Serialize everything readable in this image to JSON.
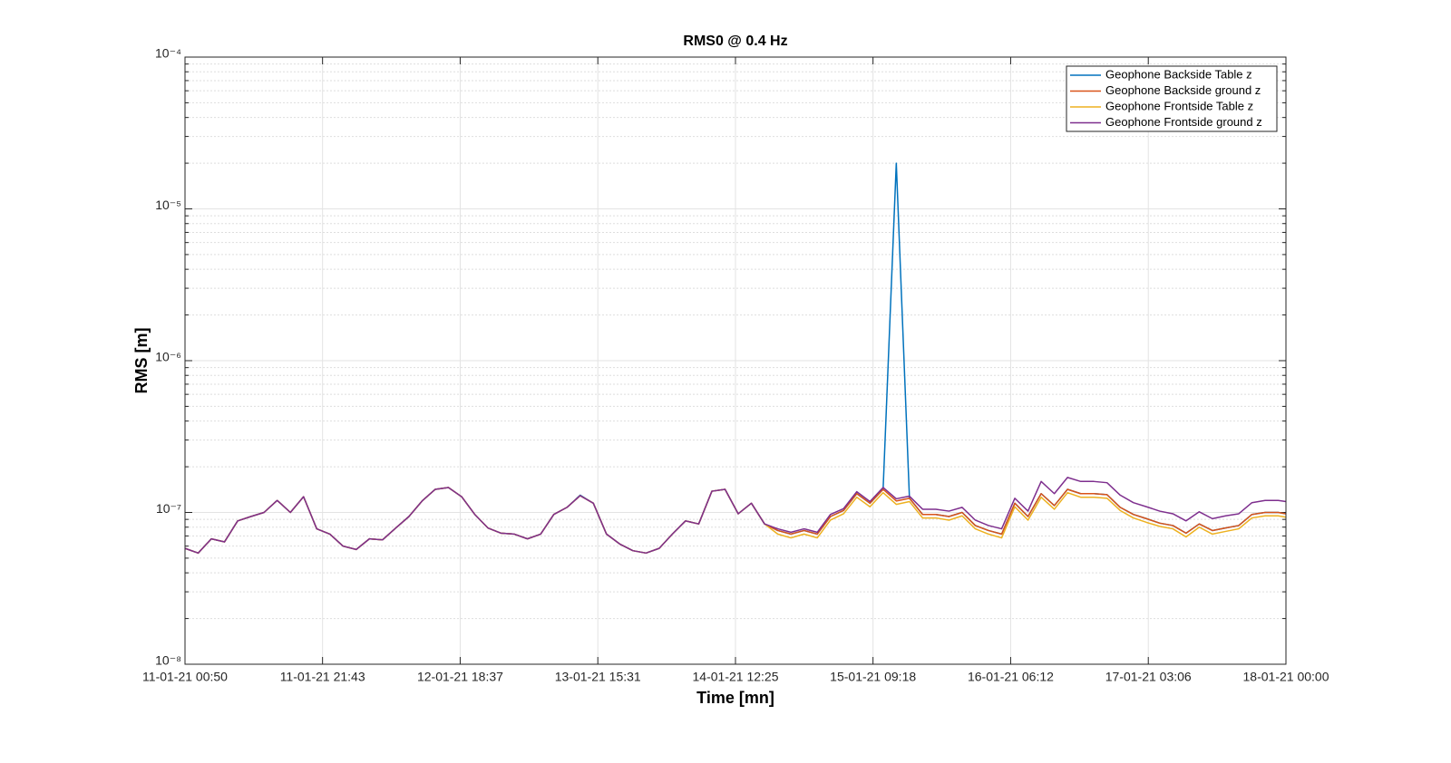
{
  "chart_data": {
    "type": "line",
    "title": "RMS0 @ 0.4 Hz",
    "x_label": "Time [mn]",
    "y_label": "RMS [m]",
    "x": [
      "11-01-21 00:50",
      "11-01-21 02:50",
      "11-01-21 04:50",
      "11-01-21 06:50",
      "11-01-21 08:50",
      "11-01-21 10:50",
      "11-01-21 12:50",
      "11-01-21 14:50",
      "11-01-21 16:50",
      "11-01-21 18:50",
      "11-01-21 20:50",
      "11-01-21 22:50",
      "12-01-21 00:50",
      "12-01-21 02:50",
      "12-01-21 04:50",
      "12-01-21 06:50",
      "12-01-21 08:50",
      "12-01-21 10:50",
      "12-01-21 12:50",
      "12-01-21 14:50",
      "12-01-21 16:50",
      "12-01-21 18:50",
      "12-01-21 20:50",
      "12-01-21 22:50",
      "13-01-21 00:50",
      "13-01-21 02:50",
      "13-01-21 04:50",
      "13-01-21 06:50",
      "13-01-21 08:50",
      "13-01-21 10:50",
      "13-01-21 12:50",
      "13-01-21 14:50",
      "13-01-21 16:50",
      "13-01-21 18:50",
      "13-01-21 20:50",
      "13-01-21 22:50",
      "14-01-21 00:50",
      "14-01-21 02:50",
      "14-01-21 04:50",
      "14-01-21 06:50",
      "14-01-21 08:50",
      "14-01-21 10:50",
      "14-01-21 12:50",
      "14-01-21 14:50",
      "14-01-21 16:50",
      "14-01-21 18:50",
      "14-01-21 20:50",
      "14-01-21 22:50",
      "15-01-21 00:50",
      "15-01-21 02:50",
      "15-01-21 04:50",
      "15-01-21 06:50",
      "15-01-21 08:50",
      "15-01-21 10:50",
      "15-01-21 12:50",
      "15-01-21 14:50",
      "15-01-21 16:50",
      "15-01-21 18:50",
      "15-01-21 20:50",
      "15-01-21 22:50",
      "16-01-21 00:50",
      "16-01-21 02:50",
      "16-01-21 04:50",
      "16-01-21 06:50",
      "16-01-21 08:50",
      "16-01-21 10:50",
      "16-01-21 12:50",
      "16-01-21 14:50",
      "16-01-21 16:50",
      "16-01-21 18:50",
      "16-01-21 20:50",
      "16-01-21 22:50",
      "17-01-21 00:50",
      "17-01-21 02:50",
      "17-01-21 04:50",
      "17-01-21 06:50",
      "17-01-21 08:50",
      "17-01-21 10:50",
      "17-01-21 12:50",
      "17-01-21 14:50",
      "17-01-21 16:50",
      "17-01-21 18:50",
      "17-01-21 20:50",
      "17-01-21 22:50",
      "18-01-21 00:00"
    ],
    "series": [
      {
        "name": "Geophone Backside Table z",
        "color": "#0072BD",
        "values": [
          5.8e-08,
          5.4e-08,
          6.7e-08,
          6.4e-08,
          8.8e-08,
          9.4e-08,
          1e-07,
          1.2e-07,
          1e-07,
          1.27e-07,
          7.8e-08,
          7.2e-08,
          6e-08,
          5.7e-08,
          6.7e-08,
          6.6e-08,
          7.9e-08,
          9.4e-08,
          1.19e-07,
          1.42e-07,
          1.46e-07,
          1.27e-07,
          9.7e-08,
          7.9e-08,
          7.3e-08,
          7.2e-08,
          6.7e-08,
          7.2e-08,
          9.7e-08,
          1.08e-07,
          1.3e-07,
          1.15e-07,
          7.2e-08,
          6.2e-08,
          5.6e-08,
          5.4e-08,
          5.8e-08,
          7.2e-08,
          8.8e-08,
          8.4e-08,
          1.38e-07,
          1.42e-07,
          9.8e-08,
          1.15e-07,
          8.4e-08,
          7.6e-08,
          7.2e-08,
          7.6e-08,
          7.2e-08,
          9.4e-08,
          1.03e-07,
          1.33e-07,
          1.15e-07,
          1.42e-07,
          2e-05,
          1.24e-07,
          9.7e-08,
          9.7e-08,
          9.4e-08,
          1e-07,
          8.2e-08,
          7.6e-08,
          7.2e-08,
          1.15e-07,
          9.4e-08,
          1.33e-07,
          1.11e-07,
          1.42e-07,
          1.33e-07,
          1.33e-07,
          1.31e-07,
          1.08e-07,
          9.7e-08,
          9.1e-08,
          8.5e-08,
          8.2e-08,
          7.3e-08,
          8.4e-08,
          7.6e-08,
          7.9e-08,
          8.2e-08,
          9.7e-08,
          1e-07,
          1e-07,
          9.8e-08
        ]
      },
      {
        "name": "Geophone Backside ground z",
        "color": "#D95319",
        "values": [
          5.8e-08,
          5.4e-08,
          6.7e-08,
          6.4e-08,
          8.8e-08,
          9.4e-08,
          1e-07,
          1.2e-07,
          1e-07,
          1.27e-07,
          7.8e-08,
          7.2e-08,
          6e-08,
          5.7e-08,
          6.7e-08,
          6.6e-08,
          7.9e-08,
          9.4e-08,
          1.19e-07,
          1.42e-07,
          1.46e-07,
          1.27e-07,
          9.7e-08,
          7.9e-08,
          7.3e-08,
          7.2e-08,
          6.7e-08,
          7.2e-08,
          9.7e-08,
          1.08e-07,
          1.29e-07,
          1.15e-07,
          7.2e-08,
          6.2e-08,
          5.6e-08,
          5.4e-08,
          5.8e-08,
          7.2e-08,
          8.8e-08,
          8.4e-08,
          1.38e-07,
          1.42e-07,
          9.8e-08,
          1.15e-07,
          8.4e-08,
          7.6e-08,
          7.2e-08,
          7.6e-08,
          7.2e-08,
          9.4e-08,
          1.03e-07,
          1.33e-07,
          1.15e-07,
          1.42e-07,
          1.19e-07,
          1.24e-07,
          9.7e-08,
          9.7e-08,
          9.4e-08,
          1e-07,
          8.2e-08,
          7.6e-08,
          7.2e-08,
          1.15e-07,
          9.4e-08,
          1.33e-07,
          1.11e-07,
          1.42e-07,
          1.33e-07,
          1.33e-07,
          1.31e-07,
          1.08e-07,
          9.7e-08,
          9.1e-08,
          8.5e-08,
          8.2e-08,
          7.3e-08,
          8.4e-08,
          7.6e-08,
          7.9e-08,
          8.2e-08,
          9.7e-08,
          1e-07,
          1e-07,
          9.8e-08
        ]
      },
      {
        "name": "Geophone Frontside Table z",
        "color": "#EDB120",
        "values": [
          5.8e-08,
          5.4e-08,
          6.7e-08,
          6.4e-08,
          8.8e-08,
          9.4e-08,
          1e-07,
          1.2e-07,
          1e-07,
          1.27e-07,
          7.8e-08,
          7.2e-08,
          6e-08,
          5.7e-08,
          6.7e-08,
          6.6e-08,
          7.9e-08,
          9.4e-08,
          1.19e-07,
          1.42e-07,
          1.46e-07,
          1.27e-07,
          9.7e-08,
          7.9e-08,
          7.3e-08,
          7.2e-08,
          6.7e-08,
          7.2e-08,
          9.7e-08,
          1.08e-07,
          1.29e-07,
          1.15e-07,
          7.2e-08,
          6.2e-08,
          5.6e-08,
          5.4e-08,
          5.8e-08,
          7.2e-08,
          8.8e-08,
          8.4e-08,
          1.38e-07,
          1.42e-07,
          9.8e-08,
          1.15e-07,
          8.4e-08,
          7.2e-08,
          6.8e-08,
          7.2e-08,
          6.8e-08,
          8.9e-08,
          9.8e-08,
          1.26e-07,
          1.09e-07,
          1.35e-07,
          1.13e-07,
          1.18e-07,
          9.2e-08,
          9.2e-08,
          8.9e-08,
          9.5e-08,
          7.8e-08,
          7.2e-08,
          6.8e-08,
          1.09e-07,
          8.9e-08,
          1.26e-07,
          1.05e-07,
          1.35e-07,
          1.26e-07,
          1.26e-07,
          1.24e-07,
          1.03e-07,
          9.2e-08,
          8.6e-08,
          8.1e-08,
          7.8e-08,
          6.9e-08,
          8e-08,
          7.2e-08,
          7.5e-08,
          7.8e-08,
          9.2e-08,
          9.5e-08,
          9.5e-08,
          9.3e-08
        ]
      },
      {
        "name": "Geophone Frontside ground z",
        "color": "#7E2F8E",
        "values": [
          5.8e-08,
          5.4e-08,
          6.7e-08,
          6.4e-08,
          8.8e-08,
          9.4e-08,
          1e-07,
          1.2e-07,
          1e-07,
          1.27e-07,
          7.8e-08,
          7.2e-08,
          6e-08,
          5.7e-08,
          6.7e-08,
          6.6e-08,
          7.9e-08,
          9.4e-08,
          1.19e-07,
          1.42e-07,
          1.46e-07,
          1.27e-07,
          9.7e-08,
          7.9e-08,
          7.3e-08,
          7.2e-08,
          6.7e-08,
          7.2e-08,
          9.7e-08,
          1.08e-07,
          1.29e-07,
          1.15e-07,
          7.2e-08,
          6.2e-08,
          5.6e-08,
          5.4e-08,
          5.8e-08,
          7.2e-08,
          8.8e-08,
          8.4e-08,
          1.38e-07,
          1.42e-07,
          9.8e-08,
          1.15e-07,
          8.4e-08,
          7.8e-08,
          7.4e-08,
          7.8e-08,
          7.4e-08,
          9.7e-08,
          1.06e-07,
          1.37e-07,
          1.18e-07,
          1.46e-07,
          1.23e-07,
          1.28e-07,
          1.05e-07,
          1.05e-07,
          1.02e-07,
          1.08e-07,
          8.9e-08,
          8.2e-08,
          7.8e-08,
          1.24e-07,
          1.02e-07,
          1.6e-07,
          1.33e-07,
          1.7e-07,
          1.6e-07,
          1.6e-07,
          1.57e-07,
          1.3e-07,
          1.16e-07,
          1.09e-07,
          1.02e-07,
          9.8e-08,
          8.8e-08,
          1.01e-07,
          9.1e-08,
          9.5e-08,
          9.8e-08,
          1.16e-07,
          1.2e-07,
          1.2e-07,
          1.18e-07
        ]
      }
    ],
    "xlim": [
      "11-01-21 00:50",
      "18-01-21 00:00"
    ],
    "xticks": [
      "11-01-21 00:50",
      "11-01-21 21:43",
      "12-01-21 18:37",
      "13-01-21 15:31",
      "14-01-21 12:25",
      "15-01-21 09:18",
      "16-01-21 06:12",
      "17-01-21 03:06",
      "18-01-21 00:00"
    ],
    "ylim": [
      1e-08,
      0.0001
    ],
    "yticks": [
      {
        "value": 1e-08,
        "label": "10⁻⁸"
      },
      {
        "value": 1e-07,
        "label": "10⁻⁷"
      },
      {
        "value": 1e-06,
        "label": "10⁻⁶"
      },
      {
        "value": 1e-05,
        "label": "10⁻⁵"
      },
      {
        "value": 0.0001,
        "label": "10⁻⁴"
      }
    ],
    "y_scale": "log",
    "grid": true,
    "minor_grid": true,
    "legend": "upper right"
  }
}
